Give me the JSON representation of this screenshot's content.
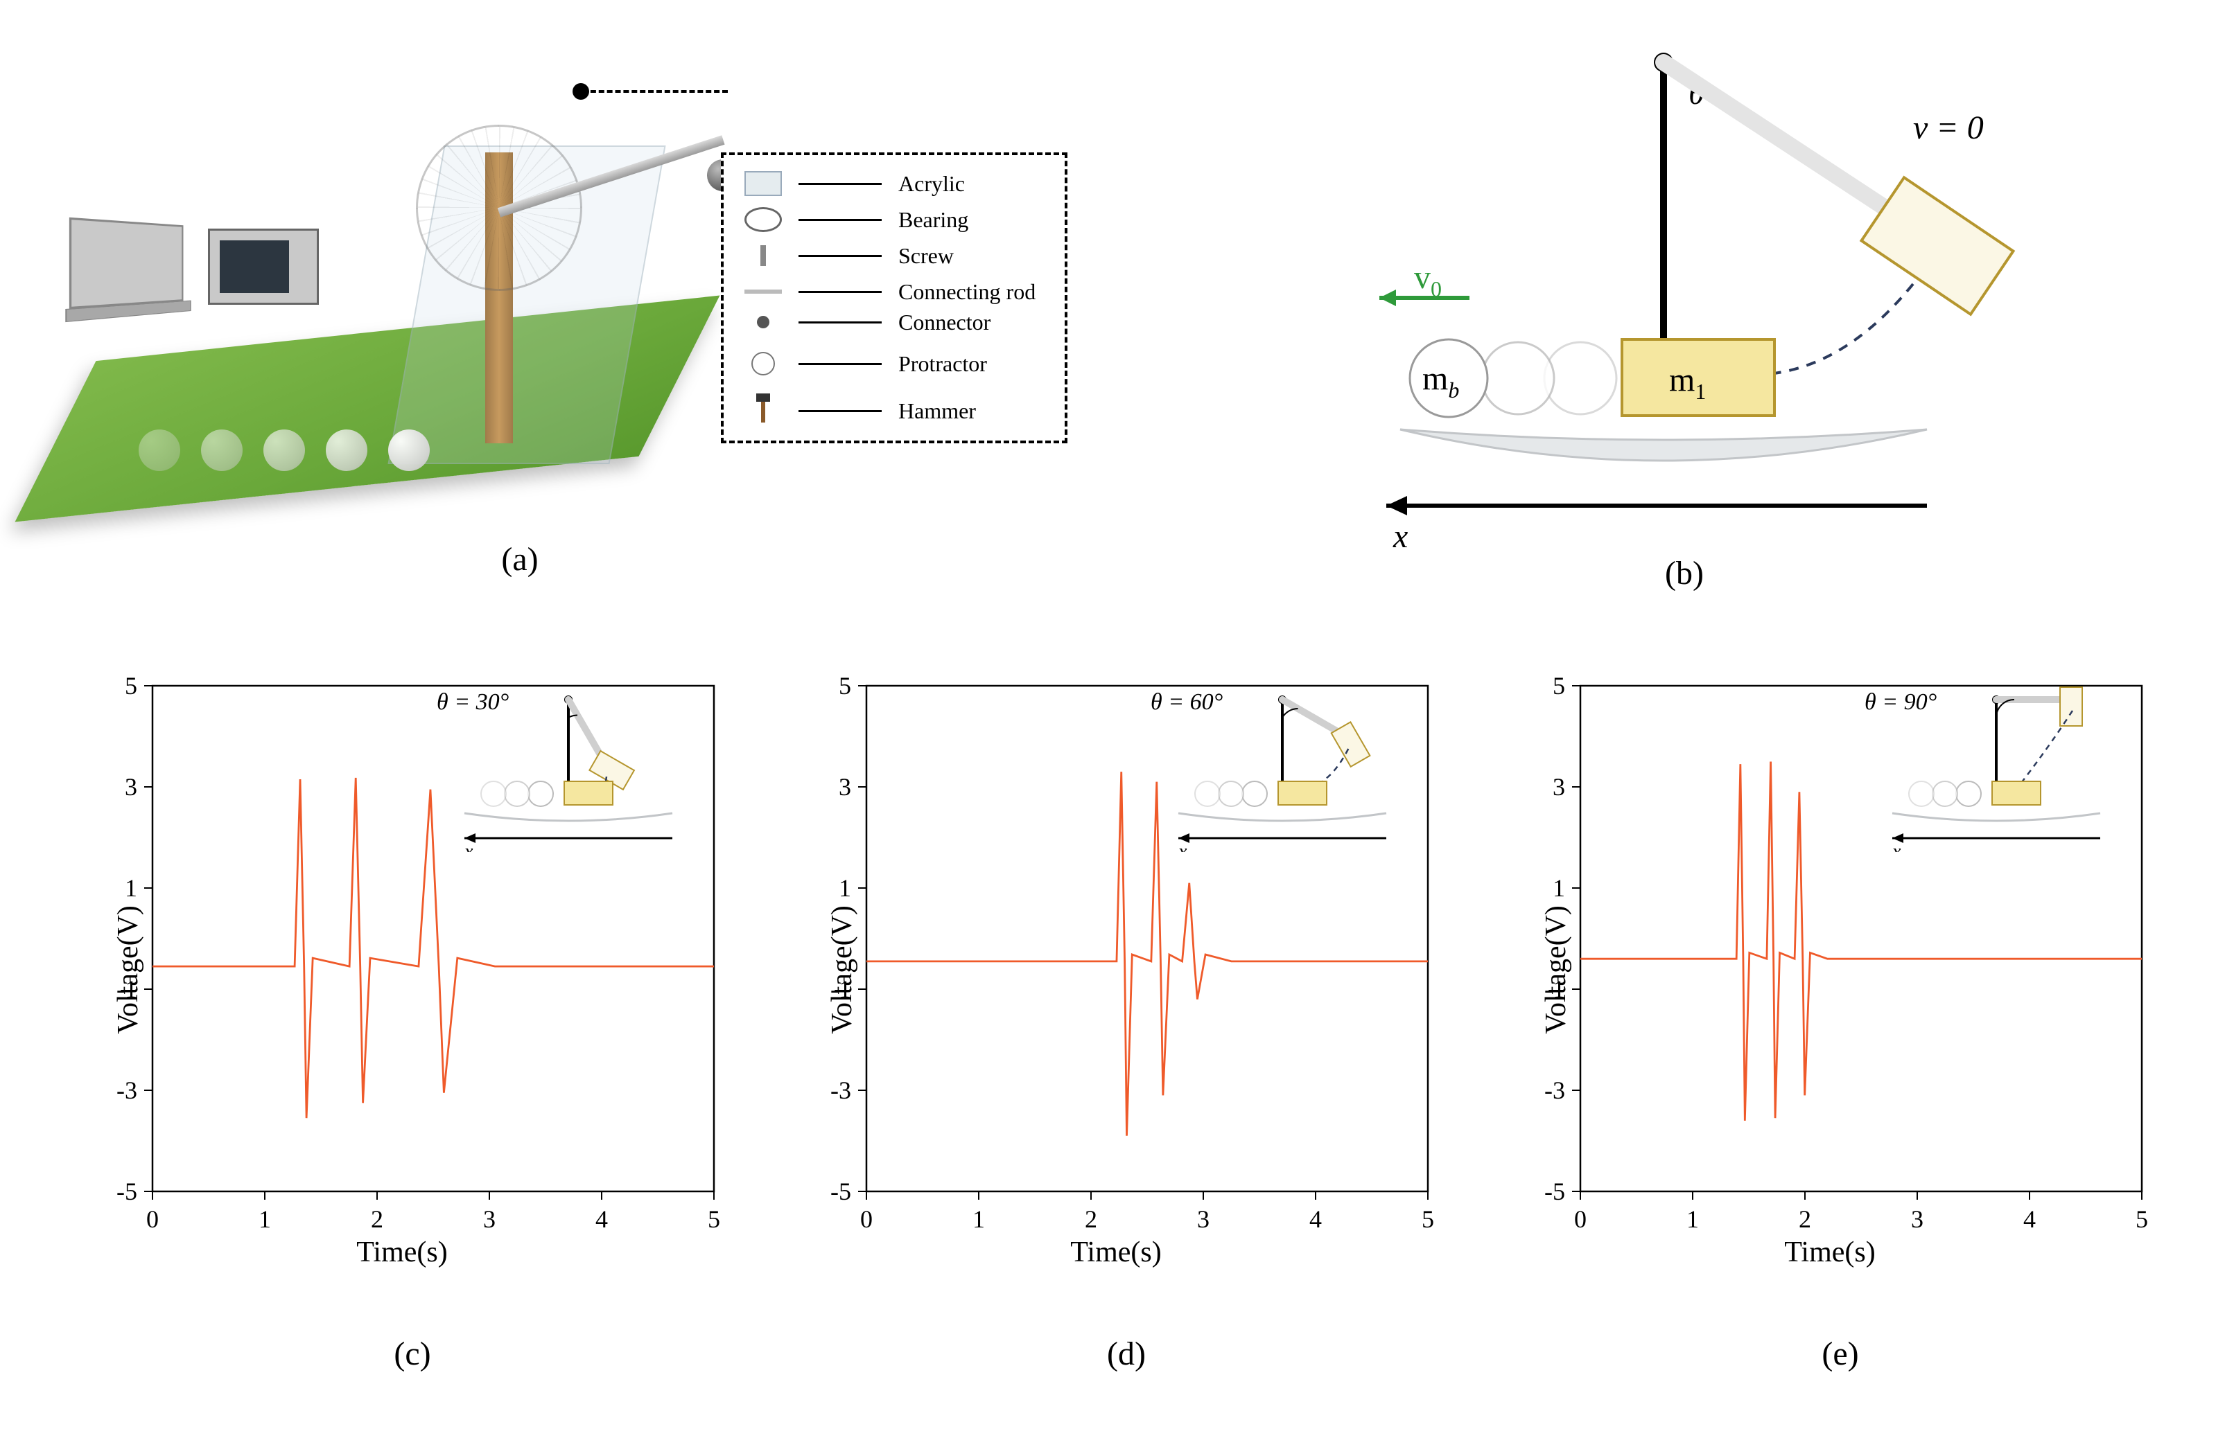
{
  "panels": {
    "a": {
      "label": "(a)"
    },
    "b": {
      "label": "(b)"
    },
    "c": {
      "label": "(c)"
    },
    "d": {
      "label": "(d)"
    },
    "e": {
      "label": "(e)"
    }
  },
  "apparatus_legend": {
    "items": [
      {
        "name": "Acrylic"
      },
      {
        "name": "Bearing"
      },
      {
        "name": "Screw"
      },
      {
        "name": "Connecting rod"
      },
      {
        "name": "Connector"
      },
      {
        "name": "Protractor"
      },
      {
        "name": "Hammer"
      }
    ]
  },
  "schematic": {
    "theta": "θ",
    "v_initial": "v = 0",
    "v0": "v",
    "v0_sub": "0",
    "m_b": "m",
    "m_b_sub": "b",
    "m1": "m",
    "m1_sub": "1",
    "x_axis": "x",
    "colors": {
      "arrow_green": "#2e9a3a",
      "dashed": "#2b3a5c",
      "block_fill": "#f5e7a0",
      "block_stroke": "#b5962e",
      "block_far_fill": "#fbf7e5",
      "ball_fill": "#ffffff",
      "ball_stroke": "#bdbdbd",
      "base_fill": "#e5e8ea",
      "base_stroke": "#c2c5c8",
      "rod": "#e4e4e4",
      "pivot": "#000000"
    }
  },
  "chart_common": {
    "xlabel": "Time(s)",
    "ylabel": "Voltage(V)",
    "xlim": [
      0,
      5
    ],
    "ylim": [
      -5,
      5
    ],
    "xticks": [
      0,
      1,
      2,
      3,
      4,
      5
    ],
    "yticks": [
      -5,
      -3,
      -1,
      1,
      3,
      5
    ],
    "trace_color": "#ef5a2a",
    "axis_color": "#000000",
    "background": "#ffffff",
    "line_width": 2.8,
    "label_fontsize": 42,
    "tick_fontsize": 36
  },
  "charts": [
    {
      "id": "c",
      "inset_theta_label": "θ = 30°",
      "inset_angle_deg": 30,
      "baseline": -0.55,
      "peaks": [
        {
          "t": 1.35,
          "up": 3.15,
          "down": -3.55,
          "width": 0.14
        },
        {
          "t": 1.85,
          "up": 3.18,
          "down": -3.25,
          "width": 0.16
        },
        {
          "t": 2.55,
          "up": 2.95,
          "down": -3.05,
          "width": 0.3
        }
      ],
      "settle_t": 3.05
    },
    {
      "id": "d",
      "inset_theta_label": "θ = 60°",
      "inset_angle_deg": 60,
      "baseline": -0.45,
      "peaks": [
        {
          "t": 2.3,
          "up": 3.3,
          "down": -3.9,
          "width": 0.12
        },
        {
          "t": 2.62,
          "up": 3.1,
          "down": -3.1,
          "width": 0.14
        },
        {
          "t": 2.92,
          "up": 1.1,
          "down": -1.2,
          "width": 0.18
        }
      ],
      "settle_t": 3.25
    },
    {
      "id": "e",
      "inset_theta_label": "θ = 90°",
      "inset_angle_deg": 90,
      "baseline": -0.4,
      "peaks": [
        {
          "t": 1.45,
          "up": 3.45,
          "down": -3.6,
          "width": 0.1
        },
        {
          "t": 1.72,
          "up": 3.5,
          "down": -3.55,
          "width": 0.1
        },
        {
          "t": 1.98,
          "up": 2.9,
          "down": -3.1,
          "width": 0.12
        }
      ],
      "settle_t": 2.2
    }
  ]
}
